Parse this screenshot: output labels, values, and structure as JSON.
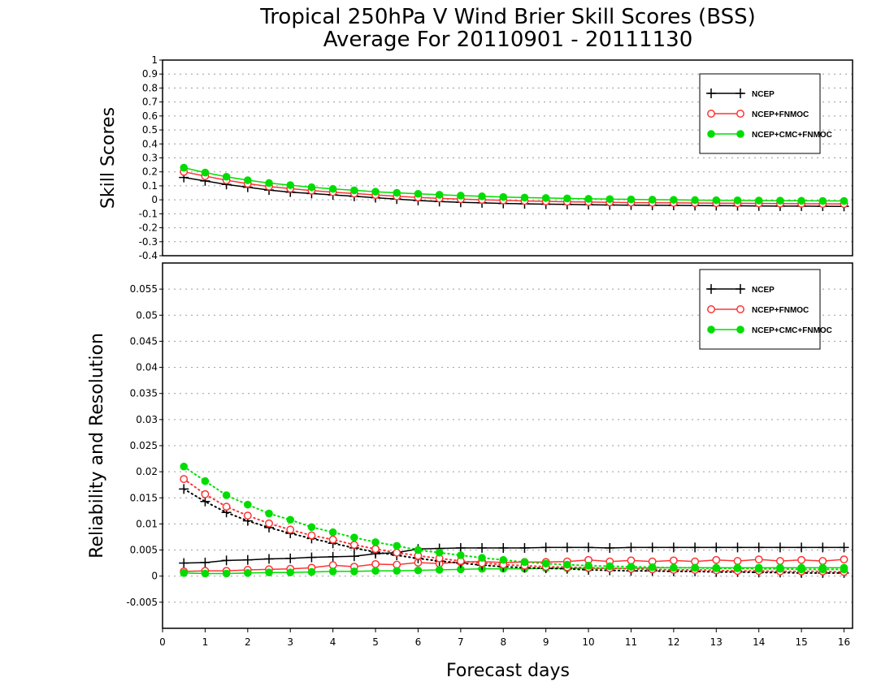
{
  "chart_data": {
    "title": [
      "Tropical 250hPa V Wind Brier Skill Scores (BSS)",
      "Average For 20110901 - 20111130"
    ],
    "xlabel": "Forecast days",
    "xlim": [
      0,
      16.2
    ],
    "xticks": [
      "0",
      "1",
      "2",
      "3",
      "4",
      "5",
      "6",
      "7",
      "8",
      "9",
      "10",
      "11",
      "12",
      "13",
      "14",
      "15",
      "16"
    ],
    "x": [
      0.5,
      1,
      1.5,
      2,
      2.5,
      3,
      3.5,
      4,
      4.5,
      5,
      5.5,
      6,
      6.5,
      7,
      7.5,
      8,
      8.5,
      9,
      9.5,
      10,
      10.5,
      11,
      11.5,
      12,
      12.5,
      13,
      13.5,
      14,
      14.5,
      15,
      15.5,
      16
    ],
    "colors": {
      "NCEP": "#000000",
      "NCEP+FNMOC": "#ff3333",
      "NCEP+CMC+FNMOC": "#00dd00",
      "grid": "#9a9a9a"
    },
    "panels": [
      {
        "ylabel": "Skill Scores",
        "ylim": [
          -0.4,
          1
        ],
        "yticks": [
          "1",
          "0.9",
          "0.8",
          "0.7",
          "0.6",
          "0.5",
          "0.4",
          "0.3",
          "0.2",
          "0.1",
          "0",
          "-0.1",
          "-0.2",
          "-0.3",
          "-0.4"
        ],
        "ytick_values": [
          1,
          0.9,
          0.8,
          0.7,
          0.6,
          0.5,
          0.4,
          0.3,
          0.2,
          0.1,
          0,
          -0.1,
          -0.2,
          -0.3,
          -0.4
        ],
        "legend": [
          "NCEP",
          "NCEP+FNMOC",
          "NCEP+CMC+FNMOC"
        ],
        "legend_placement": "top-right",
        "series": [
          {
            "name": "NCEP",
            "marker": "plus",
            "style": "solid",
            "values": [
              0.16,
              0.135,
              0.11,
              0.09,
              0.07,
              0.055,
              0.045,
              0.035,
              0.025,
              0.015,
              0.005,
              -0.005,
              -0.012,
              -0.018,
              -0.022,
              -0.026,
              -0.029,
              -0.031,
              -0.033,
              -0.035,
              -0.037,
              -0.038,
              -0.039,
              -0.04,
              -0.041,
              -0.042,
              -0.043,
              -0.044,
              -0.045,
              -0.045,
              -0.046,
              -0.047
            ]
          },
          {
            "name": "NCEP+FNMOC",
            "marker": "circle-open",
            "style": "solid",
            "values": [
              0.2,
              0.17,
              0.14,
              0.115,
              0.095,
              0.08,
              0.066,
              0.055,
              0.045,
              0.035,
              0.025,
              0.017,
              0.01,
              0.005,
              0.0,
              -0.004,
              -0.008,
              -0.011,
              -0.014,
              -0.016,
              -0.018,
              -0.02,
              -0.021,
              -0.022,
              -0.023,
              -0.024,
              -0.025,
              -0.026,
              -0.027,
              -0.028,
              -0.029,
              -0.03
            ]
          },
          {
            "name": "NCEP+CMC+FNMOC",
            "marker": "circle-filled",
            "style": "solid",
            "values": [
              0.23,
              0.195,
              0.165,
              0.14,
              0.12,
              0.105,
              0.09,
              0.078,
              0.068,
              0.058,
              0.05,
              0.043,
              0.036,
              0.03,
              0.025,
              0.02,
              0.016,
              0.013,
              0.01,
              0.007,
              0.005,
              0.003,
              0.001,
              0.0,
              -0.002,
              -0.003,
              -0.004,
              -0.005,
              -0.006,
              -0.007,
              -0.008,
              -0.008
            ]
          }
        ]
      },
      {
        "ylabel": "Reliability and Resolution",
        "ylim": [
          -0.01,
          0.06
        ],
        "yticks": [
          "0.055",
          "0.05",
          "0.045",
          "0.04",
          "0.035",
          "0.03",
          "0.025",
          "0.02",
          "0.015",
          "0.01",
          "0.005",
          "0",
          "-0.005"
        ],
        "ytick_values": [
          0.055,
          0.05,
          0.045,
          0.04,
          0.035,
          0.03,
          0.025,
          0.02,
          0.015,
          0.01,
          0.005,
          0,
          -0.005
        ],
        "legend": [
          "NCEP",
          "NCEP+FNMOC",
          "NCEP+CMC+FNMOC"
        ],
        "legend_placement": "top-right",
        "series": [
          {
            "name": "NCEP",
            "metric": "Resolution",
            "marker": "plus",
            "style": "solid",
            "values": [
              0.0025,
              0.0026,
              0.003,
              0.0031,
              0.0033,
              0.0034,
              0.0036,
              0.0037,
              0.0038,
              0.0043,
              0.0045,
              0.0052,
              0.0053,
              0.0054,
              0.0054,
              0.0054,
              0.0054,
              0.0055,
              0.0055,
              0.0055,
              0.0054,
              0.0055,
              0.0055,
              0.0055,
              0.0055,
              0.0055,
              0.0055,
              0.0055,
              0.0055,
              0.0055,
              0.0055,
              0.0055
            ]
          },
          {
            "name": "NCEP+FNMOC",
            "metric": "Resolution",
            "marker": "circle-open",
            "style": "solid",
            "values": [
              0.0009,
              0.001,
              0.001,
              0.0012,
              0.0013,
              0.0014,
              0.0016,
              0.0021,
              0.0018,
              0.0023,
              0.0022,
              0.0026,
              0.0024,
              0.0027,
              0.0028,
              0.0026,
              0.0027,
              0.0027,
              0.0028,
              0.0031,
              0.0028,
              0.003,
              0.0028,
              0.003,
              0.0028,
              0.0031,
              0.0029,
              0.0032,
              0.0029,
              0.0031,
              0.0029,
              0.0032
            ]
          },
          {
            "name": "NCEP+CMC+FNMOC",
            "metric": "Resolution",
            "marker": "circle-filled",
            "style": "solid",
            "values": [
              0.0006,
              0.0005,
              0.0005,
              0.0006,
              0.0007,
              0.0007,
              0.0008,
              0.0009,
              0.0009,
              0.001,
              0.001,
              0.0011,
              0.0012,
              0.0013,
              0.0014,
              0.0014,
              0.0014,
              0.0015,
              0.0015,
              0.0015,
              0.0015,
              0.0015,
              0.0016,
              0.0016,
              0.0016,
              0.0016,
              0.0016,
              0.0016,
              0.0016,
              0.0016,
              0.0016,
              0.0016
            ]
          },
          {
            "name": "NCEP",
            "metric": "Reliability",
            "marker": "plus",
            "style": "dotted",
            "values": [
              0.0167,
              0.0143,
              0.0122,
              0.0106,
              0.0093,
              0.0082,
              0.0072,
              0.0063,
              0.0054,
              0.0046,
              0.004,
              0.0034,
              0.0029,
              0.0025,
              0.0021,
              0.0018,
              0.0016,
              0.0015,
              0.0014,
              0.0012,
              0.0011,
              0.001,
              0.001,
              0.0009,
              0.0009,
              0.0008,
              0.0008,
              0.0007,
              0.0007,
              0.0006,
              0.0006,
              0.0006
            ]
          },
          {
            "name": "NCEP+FNMOC",
            "metric": "Reliability",
            "marker": "circle-open",
            "style": "dotted",
            "values": [
              0.0186,
              0.0157,
              0.0133,
              0.0116,
              0.0101,
              0.0089,
              0.0078,
              0.007,
              0.006,
              0.0052,
              0.0045,
              0.0039,
              0.0034,
              0.0029,
              0.0025,
              0.0022,
              0.002,
              0.0018,
              0.0017,
              0.0016,
              0.0015,
              0.0014,
              0.0013,
              0.0012,
              0.0012,
              0.0011,
              0.001,
              0.001,
              0.0009,
              0.0009,
              0.0009,
              0.0008
            ]
          },
          {
            "name": "NCEP+CMC+FNMOC",
            "metric": "Reliability",
            "marker": "circle-filled",
            "style": "dotted",
            "values": [
              0.021,
              0.0182,
              0.0155,
              0.0137,
              0.012,
              0.0108,
              0.0094,
              0.0084,
              0.0074,
              0.0065,
              0.0058,
              0.005,
              0.0045,
              0.004,
              0.0035,
              0.0031,
              0.0027,
              0.0024,
              0.0022,
              0.002,
              0.0019,
              0.0018,
              0.0017,
              0.0016,
              0.0016,
              0.0015,
              0.0015,
              0.0014,
              0.0014,
              0.0013,
              0.0013,
              0.0013
            ]
          }
        ]
      }
    ]
  }
}
